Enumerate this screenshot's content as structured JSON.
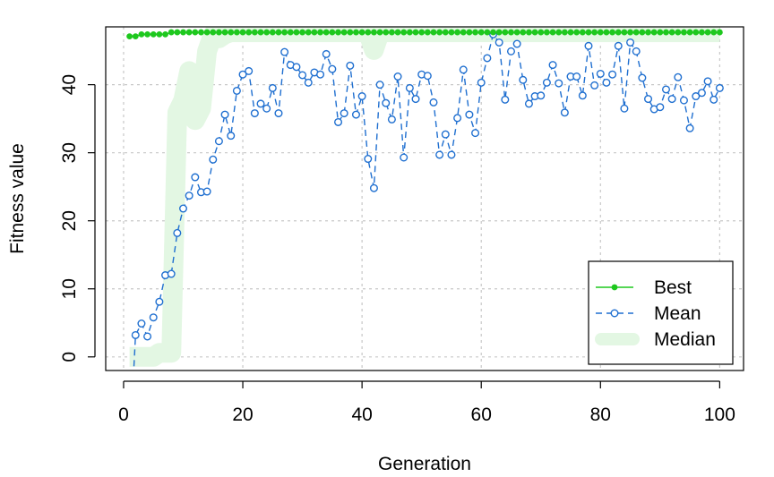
{
  "chart_data": {
    "type": "line",
    "title": "",
    "xlabel": "Generation",
    "ylabel": "Fitness value",
    "xlim": [
      -3,
      104
    ],
    "ylim": [
      -2,
      48.5
    ],
    "xticks": [
      0,
      20,
      40,
      60,
      80,
      100
    ],
    "yticks": [
      0,
      10,
      20,
      30,
      40
    ],
    "grid": true,
    "legend_position": "bottom-right",
    "x": [
      1,
      2,
      3,
      4,
      5,
      6,
      7,
      8,
      9,
      10,
      11,
      12,
      13,
      14,
      15,
      16,
      17,
      18,
      19,
      20,
      21,
      22,
      23,
      24,
      25,
      26,
      27,
      28,
      29,
      30,
      31,
      32,
      33,
      34,
      35,
      36,
      37,
      38,
      39,
      40,
      41,
      42,
      43,
      44,
      45,
      46,
      47,
      48,
      49,
      50,
      51,
      52,
      53,
      54,
      55,
      56,
      57,
      58,
      59,
      60,
      61,
      62,
      63,
      64,
      65,
      66,
      67,
      68,
      69,
      70,
      71,
      72,
      73,
      74,
      75,
      76,
      77,
      78,
      79,
      80,
      81,
      82,
      83,
      84,
      85,
      86,
      87,
      88,
      89,
      90,
      91,
      92,
      93,
      94,
      95,
      96,
      97,
      98,
      99,
      100
    ],
    "series": [
      {
        "name": "Best",
        "color": "#1ec81e",
        "style": "solid-filled-dots",
        "values": [
          47.1,
          47.1,
          47.4,
          47.4,
          47.4,
          47.4,
          47.4,
          47.7,
          47.7,
          47.7,
          47.7,
          47.7,
          47.7,
          47.7,
          47.7,
          47.7,
          47.7,
          47.7,
          47.7,
          47.7,
          47.7,
          47.7,
          47.7,
          47.7,
          47.7,
          47.7,
          47.7,
          47.7,
          47.7,
          47.7,
          47.7,
          47.7,
          47.7,
          47.7,
          47.7,
          47.7,
          47.7,
          47.7,
          47.7,
          47.7,
          47.7,
          47.7,
          47.7,
          47.7,
          47.7,
          47.7,
          47.7,
          47.7,
          47.7,
          47.7,
          47.7,
          47.7,
          47.7,
          47.7,
          47.7,
          47.7,
          47.7,
          47.7,
          47.7,
          47.7,
          47.7,
          47.7,
          47.7,
          47.7,
          47.7,
          47.7,
          47.7,
          47.7,
          47.7,
          47.7,
          47.7,
          47.7,
          47.7,
          47.7,
          47.7,
          47.7,
          47.7,
          47.7,
          47.7,
          47.7,
          47.7,
          47.7,
          47.7,
          47.7,
          47.7,
          47.7,
          47.7,
          47.7,
          47.7,
          47.7,
          47.7,
          47.7,
          47.7,
          47.7,
          47.7,
          47.7,
          47.7,
          47.7,
          47.7,
          47.7
        ]
      },
      {
        "name": "Mean",
        "color": "#1f6fd0",
        "style": "dashed-open-circles",
        "values": [
          -14,
          3.2,
          4.9,
          3.0,
          5.8,
          8.1,
          12.0,
          12.2,
          18.2,
          21.8,
          23.7,
          26.4,
          24.2,
          24.3,
          29.0,
          31.7,
          35.6,
          32.5,
          39.1,
          41.5,
          42.0,
          35.8,
          37.2,
          36.5,
          39.5,
          35.8,
          44.8,
          42.9,
          42.6,
          41.4,
          40.3,
          41.8,
          41.5,
          44.5,
          42.3,
          34.5,
          35.8,
          42.8,
          35.6,
          38.3,
          29.1,
          24.8,
          40.0,
          37.3,
          34.9,
          41.2,
          29.3,
          39.5,
          37.9,
          41.5,
          41.3,
          37.4,
          29.7,
          32.7,
          29.7,
          35.1,
          42.2,
          35.6,
          32.9,
          40.3,
          43.9,
          47.4,
          46.2,
          37.8,
          44.9,
          46.0,
          40.7,
          37.2,
          38.3,
          38.4,
          40.3,
          42.9,
          40.2,
          35.9,
          41.2,
          41.2,
          38.4,
          45.7,
          39.9,
          41.6,
          40.3,
          41.5,
          45.7,
          36.5,
          46.2,
          44.9,
          41.0,
          37.9,
          36.4,
          36.7,
          39.3,
          37.9,
          41.1,
          37.7,
          33.6,
          38.3,
          38.8,
          40.5,
          37.8,
          39.5
        ]
      },
      {
        "name": "Median",
        "color": "#e3f7e3",
        "style": "thick-band",
        "values": [
          0,
          0,
          0,
          0,
          0,
          0.6,
          0.6,
          0.6,
          35.9,
          37.7,
          42.0,
          34.8,
          36.5,
          44.9,
          47.4,
          46.8,
          47.4,
          47.7,
          47.7,
          47.7,
          47.7,
          47.7,
          47.7,
          47.7,
          47.7,
          47.7,
          47.7,
          47.7,
          47.7,
          47.7,
          47.7,
          47.7,
          47.7,
          47.7,
          47.7,
          47.7,
          47.7,
          47.7,
          47.7,
          47.7,
          47.7,
          45.1,
          47.7,
          47.7,
          47.7,
          47.7,
          47.7,
          47.7,
          47.7,
          47.7,
          47.7,
          47.7,
          47.7,
          47.7,
          47.7,
          47.7,
          47.7,
          47.7,
          47.7,
          47.7,
          47.7,
          47.7,
          47.7,
          47.7,
          47.7,
          47.7,
          47.7,
          47.7,
          47.7,
          47.7,
          47.7,
          47.7,
          47.7,
          47.7,
          47.7,
          47.7,
          47.7,
          47.7,
          47.7,
          47.7,
          47.7,
          47.7,
          47.7,
          47.7,
          47.7,
          47.7,
          47.7,
          47.7,
          47.7,
          47.7,
          47.7,
          47.7,
          47.7,
          47.7,
          47.7,
          47.7,
          47.7,
          47.7,
          47.7,
          47.7
        ]
      }
    ]
  }
}
